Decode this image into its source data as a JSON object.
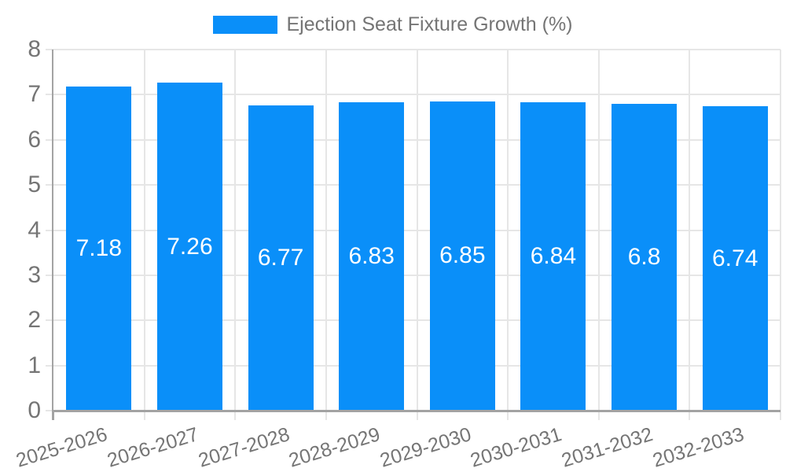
{
  "legend": {
    "label": "Ejection Seat Fixture Growth (%)"
  },
  "colors": {
    "bar": "#0a8ff9",
    "grid": "#e6e6e6",
    "axis": "#a3a3a3",
    "tick_text": "#757575",
    "bar_label_text": "#ffffff",
    "background": "#ffffff"
  },
  "chart_data": {
    "type": "bar",
    "title": "",
    "legend_entries": [
      "Ejection Seat Fixture Growth (%)"
    ],
    "legend_position": "top",
    "categories": [
      "2025-2026",
      "2026-2027",
      "2027-2028",
      "2028-2029",
      "2029-2030",
      "2030-2031",
      "2031-2032",
      "2032-2033"
    ],
    "values": [
      7.18,
      7.26,
      6.77,
      6.83,
      6.85,
      6.84,
      6.8,
      6.74
    ],
    "value_labels": [
      "7.18",
      "7.26",
      "6.77",
      "6.83",
      "6.85",
      "6.84",
      "6.8",
      "6.74"
    ],
    "xlabel": "",
    "ylabel": "",
    "ylim": [
      0,
      8
    ],
    "yticks": [
      0,
      1,
      2,
      3,
      4,
      5,
      6,
      7,
      8
    ],
    "grid": true,
    "value_labels_inside_bars": true,
    "x_tick_rotation_deg": -17
  }
}
